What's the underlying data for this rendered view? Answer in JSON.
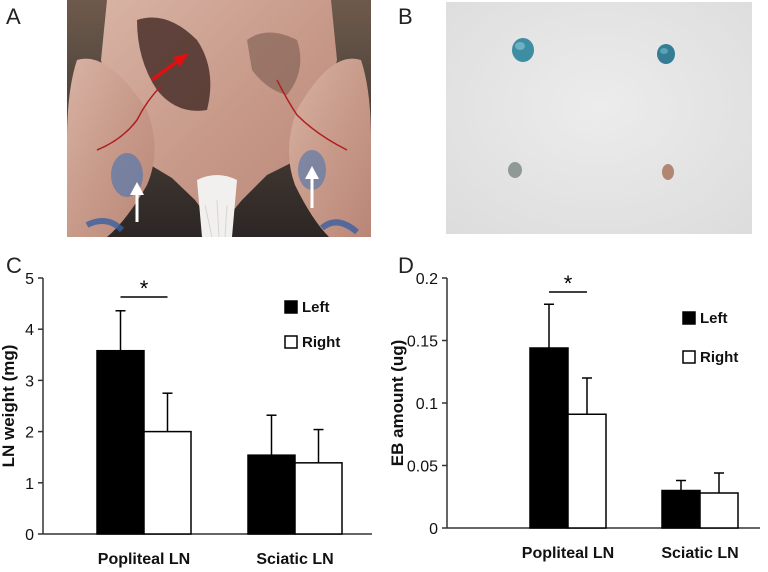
{
  "panels": {
    "a": "A",
    "b": "B",
    "c": "C",
    "d": "D"
  },
  "chart_data": [
    {
      "type": "bar",
      "panel": "C",
      "categories": [
        "Popliteal LN",
        "Sciatic LN"
      ],
      "series": [
        {
          "name": "Left",
          "values": [
            3.58,
            1.54
          ],
          "errors": [
            0.78,
            0.78
          ],
          "color": "#000000"
        },
        {
          "name": "Right",
          "values": [
            2.0,
            1.39
          ],
          "errors": [
            0.75,
            0.65
          ],
          "color": "#ffffff"
        }
      ],
      "xlabel": "",
      "ylabel": "LN weight (mg)",
      "ylim": [
        0,
        5
      ],
      "yticks": [
        "0",
        "1",
        "2",
        "3",
        "4",
        "5"
      ],
      "legend": "top-right",
      "grid": false,
      "annotations": [
        {
          "text": "*",
          "category": "Popliteal LN"
        }
      ]
    },
    {
      "type": "bar",
      "panel": "D",
      "categories": [
        "Popliteal LN",
        "Sciatic LN"
      ],
      "series": [
        {
          "name": "Left",
          "values": [
            0.144,
            0.03
          ],
          "errors": [
            0.035,
            0.008
          ],
          "color": "#000000"
        },
        {
          "name": "Right",
          "values": [
            0.091,
            0.028
          ],
          "errors": [
            0.029,
            0.016
          ],
          "color": "#ffffff"
        }
      ],
      "xlabel": "",
      "ylabel": "EB amount (ug)",
      "ylim": [
        0,
        0.2
      ],
      "yticks": [
        "0",
        "0.05",
        "0.1",
        "0.15",
        "0.2"
      ],
      "legend": "top-right",
      "grid": false,
      "annotations": [
        {
          "text": "*",
          "category": "Popliteal LN"
        }
      ]
    }
  ]
}
